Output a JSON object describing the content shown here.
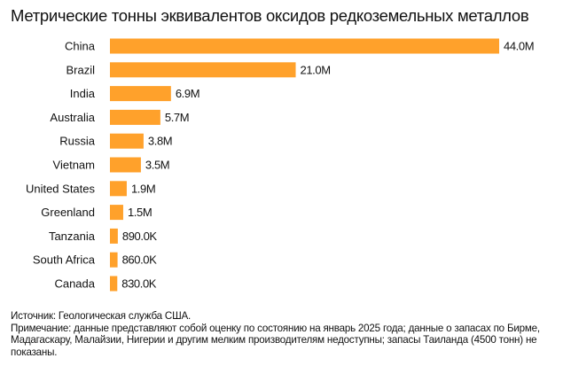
{
  "chart_data": {
    "type": "bar",
    "orientation": "horizontal",
    "title": "Метрические тонны эквивалентов оксидов редкоземельных металлов",
    "categories": [
      "China",
      "Brazil",
      "India",
      "Australia",
      "Russia",
      "Vietnam",
      "United States",
      "Greenland",
      "Tanzania",
      "South Africa",
      "Canada"
    ],
    "values": [
      44000000,
      21000000,
      6900000,
      5700000,
      3800000,
      3500000,
      1900000,
      1500000,
      890000,
      860000,
      830000
    ],
    "data_labels": [
      "44.0M",
      "21.0M",
      "6.9M",
      "5.7M",
      "3.8M",
      "3.5M",
      "1.9M",
      "1.5M",
      "890.0K",
      "860.0K",
      "830.0K"
    ],
    "xlim": [
      0,
      44000000
    ],
    "grid": false,
    "bar_color": "#FFA12B"
  },
  "notes": {
    "source": "Источник: Геологическая служба США.",
    "note": "Примечание: данные представляют собой оценку по состоянию на январь 2025 года; данные о запасах по Бирме, Мадагаскару, Малайзии, Нигерии и другим мелким производителям недоступны; запасы Таиланда (4500 тонн) не показаны."
  }
}
